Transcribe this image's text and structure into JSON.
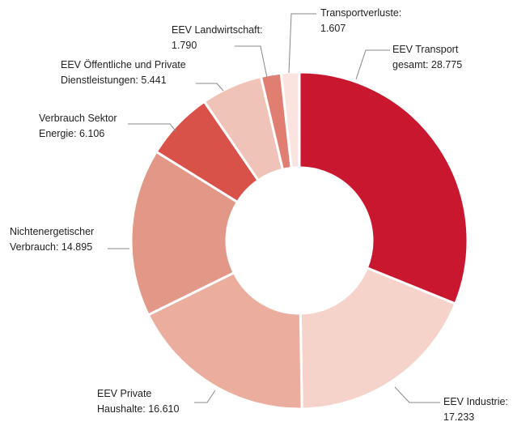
{
  "chart_data": {
    "type": "donut",
    "categories": [
      [
        "EEV Transport",
        "gesamt: 28.775"
      ],
      [
        "EEV Industrie:",
        "17.233"
      ],
      [
        "EEV Private",
        "Haushalte: 16.610"
      ],
      [
        "Nichtenergetischer",
        "Verbrauch: 14.895"
      ],
      [
        "Verbrauch Sektor",
        "Energie: 6.106"
      ],
      [
        "EEV Öffentliche und Private",
        "Dienstleistungen: 5.441"
      ],
      [
        "EEV Landwirtschaft:",
        "1.790"
      ],
      [
        "Transportverluste:",
        "1.607"
      ]
    ],
    "values": [
      28775,
      17233,
      16610,
      14895,
      6106,
      5441,
      1790,
      1607
    ],
    "colors": [
      "#c8172f",
      "#f5d3cb",
      "#ebae9e",
      "#e39787",
      "#d8524a",
      "#f0c3b8",
      "#e07e71",
      "#fbe4df"
    ]
  }
}
